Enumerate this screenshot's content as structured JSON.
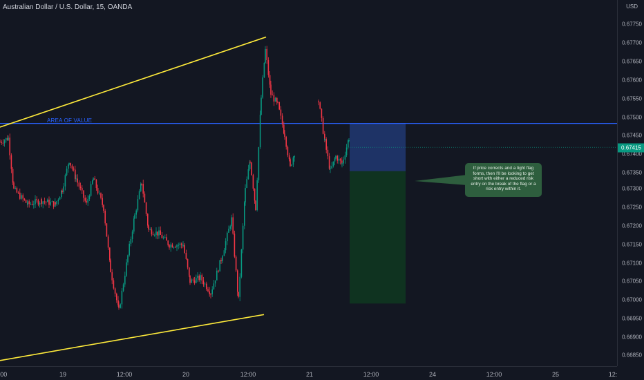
{
  "header": {
    "title": "Australian Dollar / U.S. Dollar, 15, OANDA"
  },
  "price_axis": {
    "currency": "USD",
    "ticks": [
      "0.67750",
      "0.67700",
      "0.67650",
      "0.67600",
      "0.67550",
      "0.67500",
      "0.67450",
      "0.67400",
      "0.67350",
      "0.67300",
      "0.67250",
      "0.67200",
      "0.67150",
      "0.67100",
      "0.67050",
      "0.67000",
      "0.66950",
      "0.66900",
      "0.66850"
    ],
    "current_price": "0.67415",
    "current_color": "#089981"
  },
  "time_axis": {
    "ticks": [
      ":00",
      "19",
      "12:00",
      "20",
      "12:00",
      "21",
      "12:00",
      "24",
      "12:00",
      "25",
      "12:"
    ]
  },
  "annotations": {
    "area_label": "AREA OF VALUE",
    "note": "If price corrects and a tight flag forms, then I'll be looking to get short with either a reduced risk entry on the break of the flag or a risk entry within it."
  },
  "colors": {
    "background": "#131722",
    "bull": "#089981",
    "bear": "#f23645",
    "trendline": "#ffeb3b",
    "level": "#2962ff",
    "risk_zone": "#1e3366",
    "target_zone": "#0f3320",
    "note_bg": "#2e5e3e"
  },
  "chart_data": {
    "type": "candlestick",
    "title": "Australian Dollar / U.S. Dollar, 15, OANDA",
    "ylim": [
      0.66835,
      0.678
    ],
    "key_level": 0.6748,
    "trendline_upper": [
      [
        0,
        0.6747
      ],
      [
        385,
        0.67715
      ]
    ],
    "trendline_lower": [
      [
        0,
        0.66835
      ],
      [
        382,
        0.6696
      ]
    ],
    "position": {
      "entry": 0.6748,
      "stop_boundary": 0.6735,
      "target": 0.6699
    },
    "last_price": 0.67415
  }
}
